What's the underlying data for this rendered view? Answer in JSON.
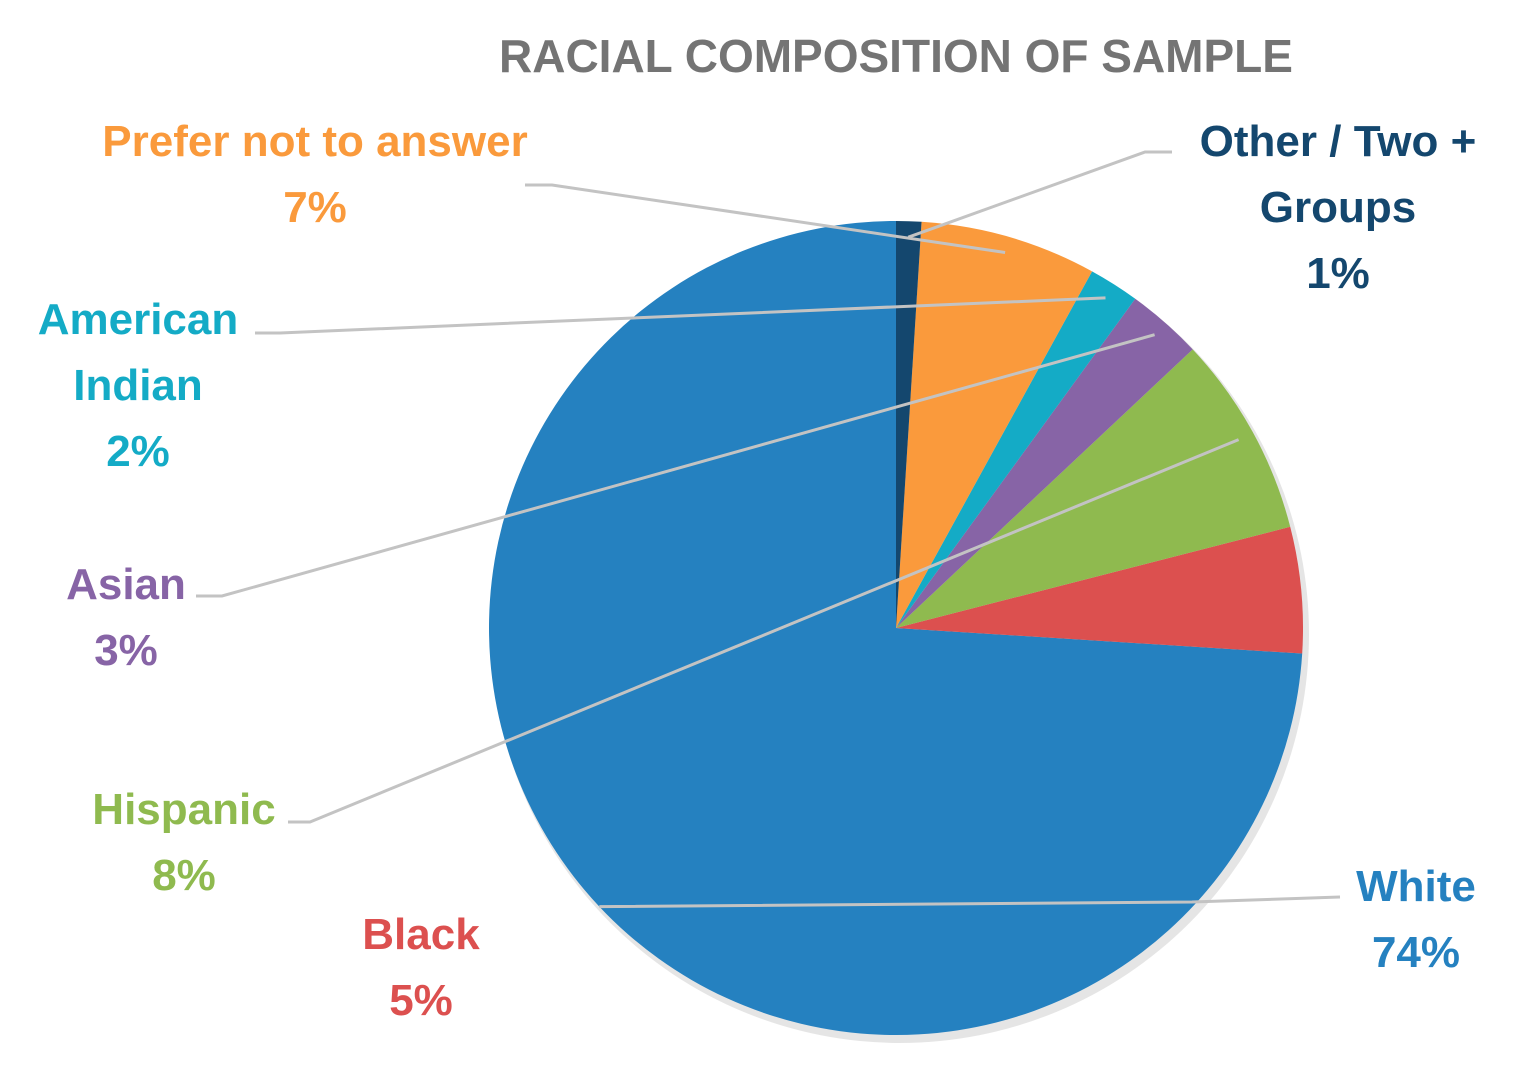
{
  "chart_data": {
    "type": "pie",
    "title": "RACIAL COMPOSITION OF SAMPLE",
    "categories": [
      "White",
      "Black",
      "Hispanic",
      "Asian",
      "American Indian",
      "Prefer not to answer",
      "Other / Two + Groups"
    ],
    "values": [
      74,
      5,
      8,
      3,
      2,
      7,
      1
    ],
    "value_labels": [
      "74%",
      "5%",
      "8%",
      "3%",
      "2%",
      "7%",
      "1%"
    ],
    "label_lines": [
      [
        "White"
      ],
      [
        "Black"
      ],
      [
        "Hispanic"
      ],
      [
        "Asian"
      ],
      [
        "American",
        "Indian"
      ],
      [
        "Prefer not to answer"
      ],
      [
        "Other / Two +",
        "Groups"
      ]
    ],
    "colors": [
      "#2581c0",
      "#dc504f",
      "#8fba4f",
      "#8764a6",
      "#14abc6",
      "#fa9a3c",
      "#14476e"
    ],
    "start_angle": "12 o'clock",
    "direction": "counterclockwise",
    "legend": "none",
    "title_color": "#747474",
    "leader_line_color": "#c3c3c3"
  }
}
